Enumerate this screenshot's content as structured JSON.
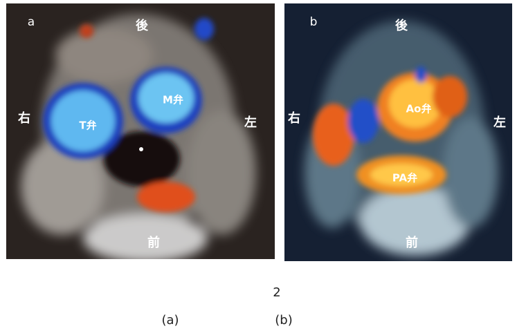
{
  "figure": {
    "panels": [
      {
        "letter": "a",
        "posterior": "後",
        "right": "右",
        "left": "左",
        "anterior": "前",
        "valves": [
          "T弁",
          "M弁"
        ]
      },
      {
        "letter": "b",
        "posterior": "後",
        "right": "右",
        "left": "左",
        "anterior": "前",
        "valves": [
          "Ao弁",
          "PA弁"
        ]
      }
    ],
    "caption": {
      "number": "2",
      "parts": [
        "(a)",
        "(b)"
      ]
    }
  }
}
